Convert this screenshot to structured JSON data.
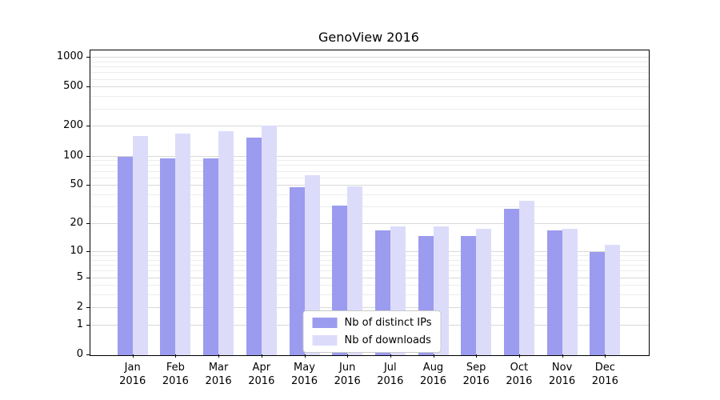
{
  "chart_data": {
    "type": "bar",
    "title": "GenoView 2016",
    "categories": [
      "Jan 2016",
      "Feb 2016",
      "Mar 2016",
      "Apr 2016",
      "May 2016",
      "Jun 2016",
      "Jul 2016",
      "Aug 2016",
      "Sep 2016",
      "Oct 2016",
      "Nov 2016",
      "Dec 2016"
    ],
    "series": [
      {
        "name": "Nb of distinct IPs",
        "color": "#9b9bef",
        "values": [
          100,
          95,
          95,
          155,
          48,
          31,
          17,
          15,
          15,
          29,
          17,
          10
        ]
      },
      {
        "name": "Nb of downloads",
        "color": "#dcdcfa",
        "values": [
          160,
          170,
          180,
          205,
          64,
          49,
          19,
          19,
          18,
          35,
          18,
          12
        ]
      }
    ],
    "xlabel": "",
    "ylabel": "",
    "yscale": "log(1+y)",
    "yticks": [
      0,
      1,
      2,
      5,
      10,
      20,
      50,
      100,
      200,
      500,
      1000
    ],
    "ylim": [
      0,
      1200
    ],
    "grid": true,
    "legend_position": "lower center"
  }
}
